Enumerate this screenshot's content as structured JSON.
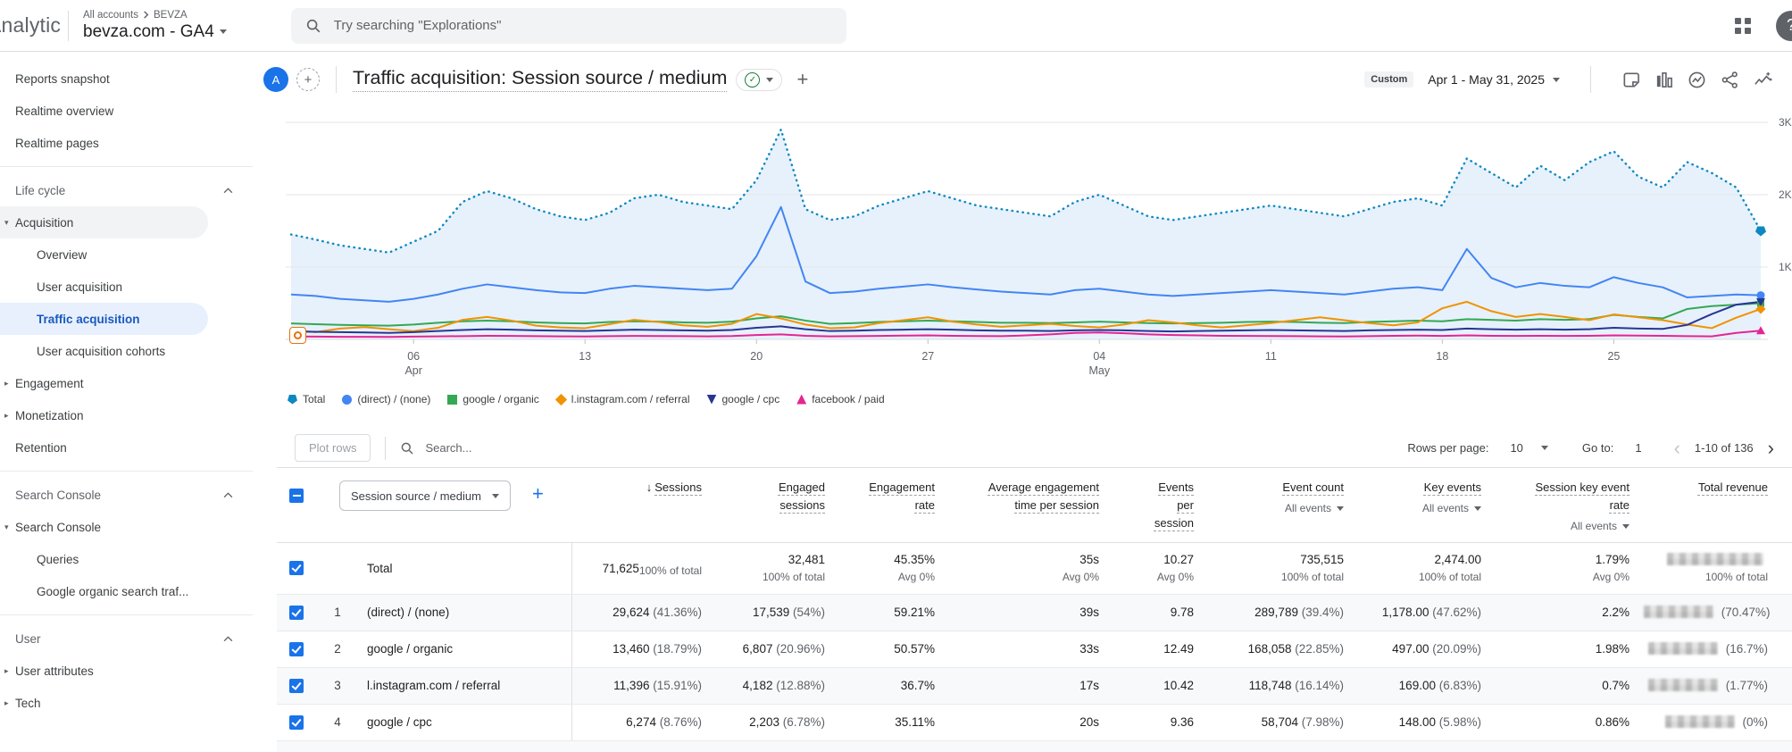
{
  "topbar": {
    "logo": "Analytics",
    "breadcrumb": {
      "root": "All accounts",
      "current": "BEVZA"
    },
    "property_selector": "bevza.com - GA4",
    "search_placeholder": "Try searching \"Explorations\""
  },
  "sidebar": {
    "items": [
      {
        "label": "Reports snapshot",
        "type": "item"
      },
      {
        "label": "Realtime overview",
        "type": "item"
      },
      {
        "label": "Realtime pages",
        "type": "item"
      },
      {
        "type": "divider"
      },
      {
        "label": "Life cycle",
        "type": "section",
        "chevron": "up"
      },
      {
        "label": "Acquisition",
        "type": "parent",
        "arrow": "down",
        "active_section": true
      },
      {
        "label": "Overview",
        "type": "child"
      },
      {
        "label": "User acquisition",
        "type": "child"
      },
      {
        "label": "Traffic acquisition",
        "type": "child",
        "selected": true
      },
      {
        "label": "User acquisition cohorts",
        "type": "child"
      },
      {
        "label": "Engagement",
        "type": "parent",
        "arrow": "right"
      },
      {
        "label": "Monetization",
        "type": "parent",
        "arrow": "right"
      },
      {
        "label": "Retention",
        "type": "parent"
      },
      {
        "type": "divider"
      },
      {
        "label": "Search Console",
        "type": "section",
        "chevron": "up"
      },
      {
        "label": "Search Console",
        "type": "parent",
        "arrow": "down"
      },
      {
        "label": "Queries",
        "type": "child"
      },
      {
        "label": "Google organic search traf...",
        "type": "child"
      },
      {
        "type": "divider"
      },
      {
        "label": "User",
        "type": "section",
        "chevron": "up"
      },
      {
        "label": "User attributes",
        "type": "parent",
        "arrow": "right"
      },
      {
        "label": "Tech",
        "type": "parent",
        "arrow": "right"
      }
    ]
  },
  "report_header": {
    "avatar_letter": "A",
    "title": "Traffic acquisition: Session source / medium",
    "date_preset": "Custom",
    "date_range": "Apr 1 - May 31, 2025",
    "icons": [
      "note-icon",
      "bar-chart-icon",
      "insights-icon",
      "share-icon",
      "sparkline-icon"
    ]
  },
  "chart_data": {
    "type": "line",
    "x_unit": "day",
    "x_range": [
      "Apr 1, 2025",
      "May 31, 2025"
    ],
    "ylim": [
      0,
      3200
    ],
    "grid": true,
    "legend_position": "bottom",
    "y_gridlines": [
      {
        "v": 1000,
        "label": "1K"
      },
      {
        "v": 2000,
        "label": "2K"
      },
      {
        "v": 3000,
        "label": "3K"
      }
    ],
    "x_ticks": [
      {
        "i": 5,
        "label": "06",
        "sub": "Apr"
      },
      {
        "i": 12,
        "label": "13"
      },
      {
        "i": 19,
        "label": "20"
      },
      {
        "i": 26,
        "label": "27"
      },
      {
        "i": 33,
        "label": "04",
        "sub": "May"
      },
      {
        "i": 40,
        "label": "11"
      },
      {
        "i": 47,
        "label": "18"
      },
      {
        "i": 54,
        "label": "25"
      }
    ],
    "series": [
      {
        "name": "Total",
        "color": "#0c88c2",
        "marker": "pentagon",
        "line": "dotted",
        "area": true,
        "values": [
          1450,
          1380,
          1300,
          1250,
          1200,
          1350,
          1500,
          1900,
          2050,
          1950,
          1800,
          1700,
          1650,
          1750,
          1950,
          2000,
          1900,
          1850,
          1800,
          2200,
          2900,
          1800,
          1650,
          1700,
          1850,
          1950,
          2050,
          1950,
          1850,
          1800,
          1750,
          1700,
          1900,
          2000,
          1850,
          1700,
          1650,
          1700,
          1750,
          1800,
          1850,
          1800,
          1750,
          1700,
          1800,
          1900,
          1950,
          1850,
          2500,
          2300,
          2100,
          2400,
          2200,
          2450,
          2600,
          2250,
          2100,
          2450,
          2300,
          2100,
          1500
        ]
      },
      {
        "name": "(direct) / (none)",
        "color": "#4285f4",
        "marker": "circle",
        "line": "solid",
        "values": [
          620,
          600,
          560,
          540,
          520,
          560,
          620,
          700,
          760,
          720,
          680,
          650,
          640,
          700,
          740,
          720,
          700,
          680,
          700,
          1150,
          1830,
          800,
          640,
          660,
          700,
          730,
          760,
          720,
          690,
          660,
          640,
          620,
          680,
          700,
          660,
          620,
          600,
          620,
          640,
          660,
          680,
          660,
          640,
          620,
          660,
          700,
          720,
          680,
          1250,
          850,
          720,
          780,
          740,
          720,
          860,
          780,
          720,
          580,
          600,
          620,
          610
        ]
      },
      {
        "name": "google / organic",
        "color": "#34a853",
        "marker": "square",
        "line": "solid",
        "values": [
          220,
          210,
          200,
          195,
          190,
          205,
          230,
          250,
          260,
          250,
          235,
          225,
          220,
          240,
          250,
          245,
          235,
          230,
          245,
          290,
          320,
          260,
          215,
          225,
          240,
          250,
          260,
          250,
          240,
          230,
          230,
          225,
          235,
          245,
          235,
          225,
          220,
          225,
          230,
          240,
          245,
          240,
          230,
          225,
          240,
          250,
          260,
          250,
          280,
          270,
          260,
          280,
          270,
          280,
          340,
          310,
          290,
          420,
          460,
          480,
          500
        ]
      },
      {
        "name": "l.instagram.com / referral",
        "color": "#f09300",
        "marker": "diamond",
        "line": "solid",
        "values": [
          130,
          100,
          150,
          170,
          140,
          115,
          160,
          270,
          310,
          260,
          190,
          165,
          155,
          210,
          270,
          240,
          195,
          175,
          215,
          350,
          290,
          205,
          155,
          165,
          225,
          265,
          305,
          245,
          205,
          175,
          195,
          215,
          185,
          165,
          205,
          265,
          235,
          195,
          165,
          195,
          225,
          265,
          305,
          265,
          225,
          195,
          235,
          430,
          520,
          390,
          310,
          350,
          310,
          265,
          345,
          305,
          265,
          205,
          155,
          300,
          420
        ]
      },
      {
        "name": "google / cpc",
        "color": "#283593",
        "marker": "triangle-down",
        "line": "solid",
        "values": [
          110,
          105,
          100,
          95,
          90,
          100,
          115,
          130,
          140,
          135,
          125,
          120,
          115,
          125,
          135,
          130,
          125,
          120,
          130,
          160,
          180,
          140,
          115,
          120,
          130,
          135,
          140,
          135,
          125,
          120,
          120,
          115,
          125,
          130,
          125,
          115,
          110,
          115,
          120,
          125,
          130,
          125,
          120,
          115,
          125,
          130,
          135,
          130,
          150,
          140,
          135,
          140,
          135,
          140,
          160,
          150,
          145,
          200,
          350,
          480,
          520
        ]
      },
      {
        "name": "facebook / paid",
        "color": "#e52592",
        "marker": "triangle-up",
        "line": "solid",
        "values": [
          40,
          38,
          35,
          36,
          34,
          38,
          42,
          45,
          50,
          48,
          44,
          42,
          40,
          45,
          48,
          46,
          44,
          42,
          46,
          60,
          70,
          50,
          42,
          44,
          48,
          52,
          55,
          50,
          46,
          44,
          55,
          70,
          90,
          95,
          85,
          70,
          60,
          55,
          50,
          48,
          46,
          44,
          42,
          40,
          45,
          50,
          52,
          48,
          55,
          50,
          48,
          50,
          48,
          50,
          55,
          52,
          50,
          45,
          42,
          90,
          120
        ]
      }
    ]
  },
  "table": {
    "plot_rows_label": "Plot rows",
    "search_placeholder": "Search...",
    "rows_per_page_label": "Rows per page:",
    "rows_per_page_value": "10",
    "goto_label": "Go to:",
    "goto_value": "1",
    "pagination_range": "1-10 of 136",
    "dimension_selector": "Session source / medium",
    "columns": [
      {
        "label": "Sessions",
        "sorted": "desc"
      },
      {
        "label": "Engaged sessions"
      },
      {
        "label": "Engagement rate"
      },
      {
        "label": "Average engagement time per session"
      },
      {
        "label": "Events per session"
      },
      {
        "label": "Event count",
        "filter": "All events"
      },
      {
        "label": "Key events",
        "filter": "All events"
      },
      {
        "label": "Session key event rate",
        "filter": "All events"
      },
      {
        "label": "Total revenue"
      }
    ],
    "total_row": {
      "label": "Total",
      "cells": [
        {
          "value": "71,625",
          "sub": "100% of total"
        },
        {
          "value": "32,481",
          "sub": "100% of total"
        },
        {
          "value": "45.35%",
          "sub": "Avg 0%"
        },
        {
          "value": "35s",
          "sub": "Avg 0%"
        },
        {
          "value": "10.27",
          "sub": "Avg 0%"
        },
        {
          "value": "735,515",
          "sub": "100% of total"
        },
        {
          "value": "2,474.00",
          "sub": "100% of total"
        },
        {
          "value": "1.79%",
          "sub": "Avg 0%"
        },
        {
          "value": "",
          "sub": "100% of total",
          "redacted": true
        }
      ]
    },
    "rows": [
      {
        "rank": "1",
        "dimension": "(direct) / (none)",
        "cells": [
          {
            "value": "29,624",
            "pct": "(41.36%)"
          },
          {
            "value": "17,539",
            "pct": "(54%)"
          },
          {
            "value": "59.21%"
          },
          {
            "value": "39s"
          },
          {
            "value": "9.78"
          },
          {
            "value": "289,789",
            "pct": "(39.4%)"
          },
          {
            "value": "1,178.00",
            "pct": "(47.62%)"
          },
          {
            "value": "2.2%"
          },
          {
            "value": "",
            "pct": "(70.47%)",
            "redacted": true
          }
        ]
      },
      {
        "rank": "2",
        "dimension": "google / organic",
        "cells": [
          {
            "value": "13,460",
            "pct": "(18.79%)"
          },
          {
            "value": "6,807",
            "pct": "(20.96%)"
          },
          {
            "value": "50.57%"
          },
          {
            "value": "33s"
          },
          {
            "value": "12.49"
          },
          {
            "value": "168,058",
            "pct": "(22.85%)"
          },
          {
            "value": "497.00",
            "pct": "(20.09%)"
          },
          {
            "value": "1.98%"
          },
          {
            "value": "",
            "pct": "(16.7%)",
            "redacted": true
          }
        ]
      },
      {
        "rank": "3",
        "dimension": "l.instagram.com / referral",
        "cells": [
          {
            "value": "11,396",
            "pct": "(15.91%)"
          },
          {
            "value": "4,182",
            "pct": "(12.88%)"
          },
          {
            "value": "36.7%"
          },
          {
            "value": "17s"
          },
          {
            "value": "10.42"
          },
          {
            "value": "118,748",
            "pct": "(16.14%)"
          },
          {
            "value": "169.00",
            "pct": "(6.83%)"
          },
          {
            "value": "0.7%"
          },
          {
            "value": "",
            "pct": "(1.77%)",
            "redacted": true
          }
        ]
      },
      {
        "rank": "4",
        "dimension": "google / cpc",
        "cells": [
          {
            "value": "6,274",
            "pct": "(8.76%)"
          },
          {
            "value": "2,203",
            "pct": "(6.78%)"
          },
          {
            "value": "35.11%"
          },
          {
            "value": "20s"
          },
          {
            "value": "9.36"
          },
          {
            "value": "58,704",
            "pct": "(7.98%)"
          },
          {
            "value": "148.00",
            "pct": "(5.98%)"
          },
          {
            "value": "0.86%"
          },
          {
            "value": "",
            "pct": "(0%)",
            "redacted": true
          }
        ]
      }
    ]
  }
}
